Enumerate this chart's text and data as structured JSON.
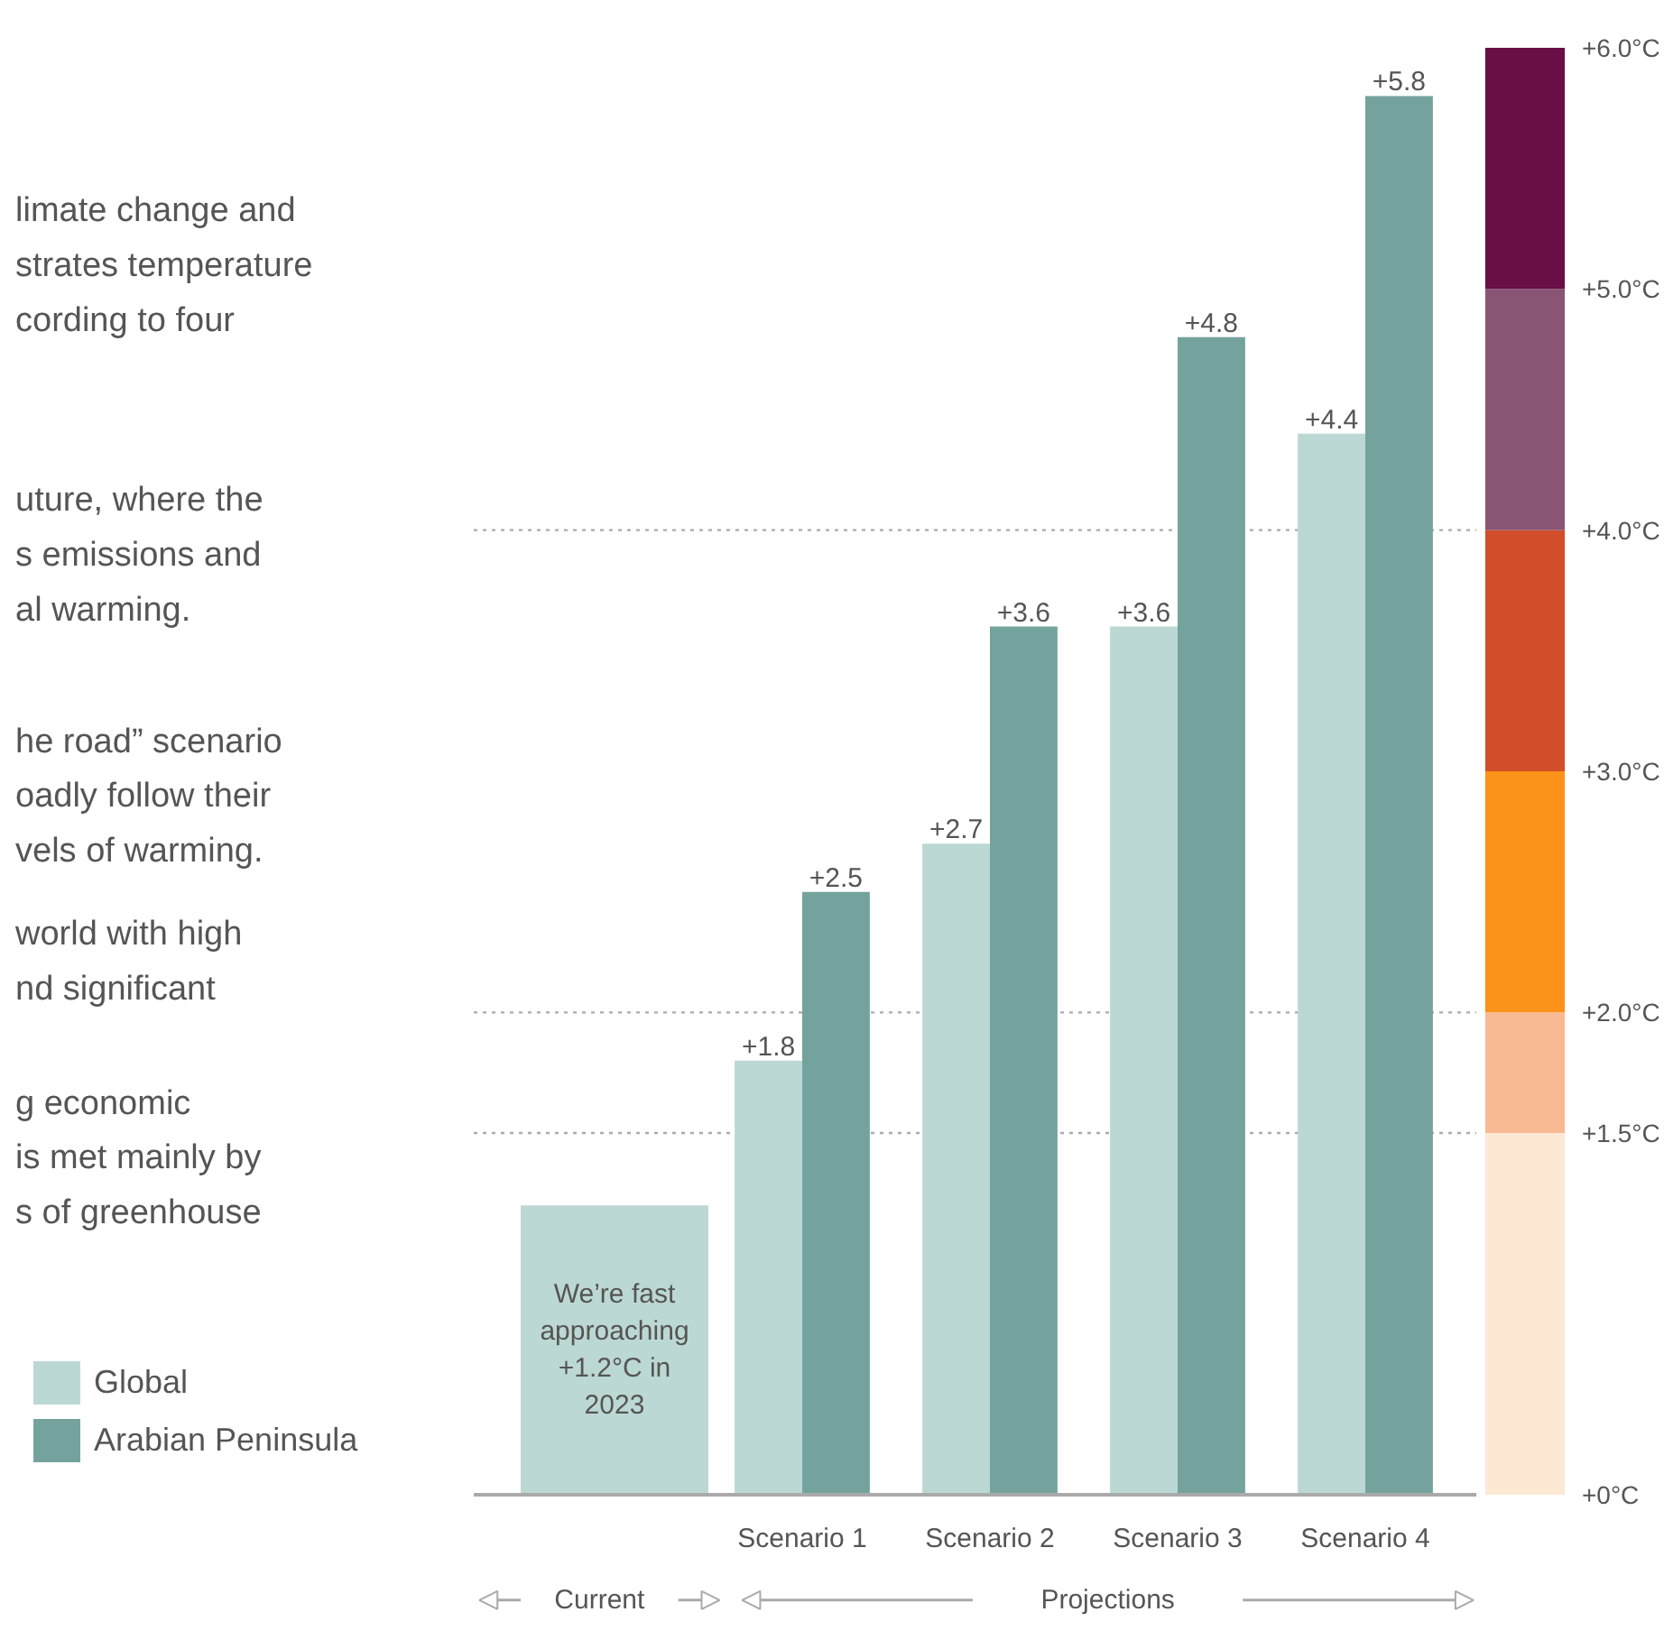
{
  "chart_data": [
    {
      "type": "bar",
      "categories": [
        null,
        "Scenario 1",
        "Scenario 2",
        "Scenario 3",
        "Scenario 4"
      ],
      "series": [
        {
          "name": "Global",
          "color": "#bcd8d4",
          "values": [
            1.2,
            1.8,
            2.7,
            3.6,
            4.4
          ],
          "value_labels": [
            null,
            "+1.8",
            "+2.7",
            "+3.6",
            "+4.4"
          ]
        },
        {
          "name": "Arabian Peninsula",
          "color": "#73a39c",
          "values": [
            null,
            2.5,
            3.6,
            4.8,
            5.8
          ],
          "value_labels": [
            null,
            "+2.5",
            "+3.6",
            "+4.8",
            "+5.8"
          ]
        }
      ],
      "ylim": [
        0,
        6.0
      ],
      "tick_labels": "x",
      "ref_lines": [
        {
          "axis": "y",
          "value": 1.5,
          "color": "#aaaaaa",
          "line_style": "dotted"
        },
        {
          "axis": "y",
          "value": 2.0,
          "color": "#aaaaaa",
          "line_style": "dotted"
        },
        {
          "axis": "y",
          "value": 4.0,
          "color": "#aaaaaa",
          "line_style": "dotted"
        }
      ],
      "annotations": [
        "We’re fast\napproaching\n+1.2°C in\n2023",
        "Current",
        "Projections",
        "limate change and\nstrates temperature\ncording to four",
        "uture, where the\ns emissions and\nal warming.",
        "he road” scenario\noadly follow their\nvels of warming.",
        "world with high\nnd significant",
        "g economic\n is met mainly by\ns of greenhouse"
      ],
      "legend": "bottom left"
    },
    {
      "type": "bar",
      "categories": [
        null
      ],
      "stacked": true,
      "series": [
        {
          "color": "#fde8d4",
          "values": [
            1.5
          ]
        },
        {
          "color": "#f8b993",
          "values": [
            0.5
          ]
        },
        {
          "color": "#fb9219",
          "values": [
            1.0
          ]
        },
        {
          "color": "#d24e2a",
          "values": [
            1.0
          ]
        },
        {
          "color": "#8a5574",
          "values": [
            1.0
          ]
        },
        {
          "color": "#6a0e47",
          "values": [
            1.0
          ]
        }
      ],
      "ylim": [
        0,
        6.0
      ],
      "yticks": [
        {
          "value": 0,
          "label": "+0°C"
        },
        {
          "value": 1.5,
          "label": "+1.5°C"
        },
        {
          "value": 2.0,
          "label": "+2.0°C"
        },
        {
          "value": 3.0,
          "label": "+3.0°C"
        },
        {
          "value": 4.0,
          "label": "+4.0°C"
        },
        {
          "value": 5.0,
          "label": "+5.0°C"
        },
        {
          "value": 6.0,
          "label": "+6.0°C"
        }
      ],
      "tick_labels": "y"
    }
  ]
}
